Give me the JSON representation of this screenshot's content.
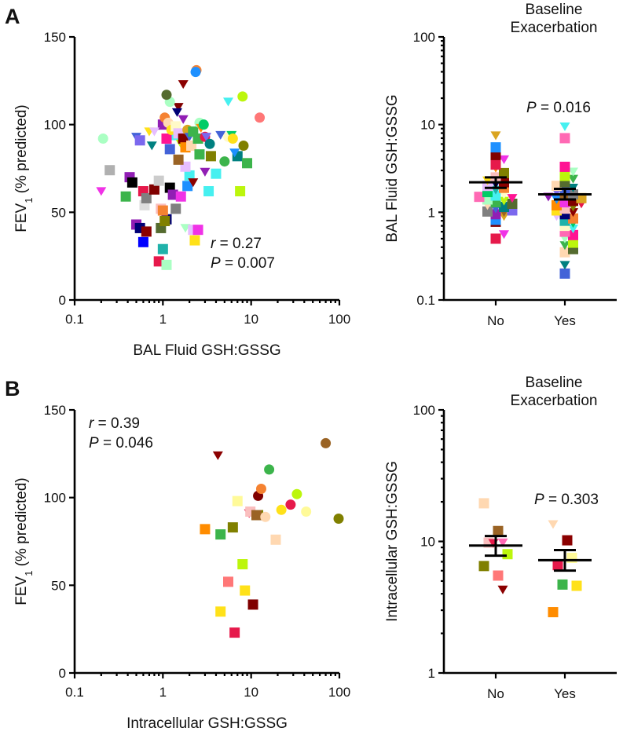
{
  "colors": [
    "#e6194b",
    "#3cb44b",
    "#ffe119",
    "#4363d8",
    "#f58231",
    "#911eb4",
    "#46f0f0",
    "#f032e6",
    "#bcf60c",
    "#fabebe",
    "#008080",
    "#e6beff",
    "#9a6324",
    "#fffac8",
    "#800000",
    "#aaffc3",
    "#808000",
    "#ffd8b1",
    "#000075",
    "#808080",
    "#00cc66",
    "#1e90ff",
    "#ff1493",
    "#ff8c00",
    "#556b2f",
    "#8b0000",
    "#7b68ee",
    "#20b2aa",
    "#daa520",
    "#ff69b4"
  ],
  "chart_data": [
    {
      "panel": "A",
      "type": "scatter",
      "title": "",
      "xlabel": "BAL Fluid GSH:GSSG",
      "ylabel_main": "FEV",
      "ylabel_sub": "1",
      "ylabel_tail": " (% predicted)",
      "xscale": "log",
      "xlim": [
        0.1,
        100
      ],
      "ylim": [
        0,
        150
      ],
      "xticks": [
        "0.1",
        "1",
        "10",
        "100"
      ],
      "yticks": [
        "0",
        "50",
        "100",
        "150"
      ],
      "stats": {
        "r_label": "r",
        "r_value": " = 0.27",
        "p_label": "P",
        "p_value": " = 0.007"
      },
      "points": [
        {
          "x": 0.21,
          "y": 92,
          "s": "c",
          "c": "#aaffc3"
        },
        {
          "x": 0.2,
          "y": 62,
          "s": "t",
          "c": "#f032e6"
        },
        {
          "x": 0.25,
          "y": 74,
          "s": "s",
          "c": "#b0b0b0"
        },
        {
          "x": 0.38,
          "y": 59,
          "s": "s",
          "c": "#3cb44b"
        },
        {
          "x": 0.42,
          "y": 70,
          "s": "s",
          "c": "#911eb4"
        },
        {
          "x": 0.45,
          "y": 67,
          "s": "s",
          "c": "#000000"
        },
        {
          "x": 0.5,
          "y": 93,
          "s": "t",
          "c": "#4363d8"
        },
        {
          "x": 0.55,
          "y": 91,
          "s": "s",
          "c": "#7b68ee"
        },
        {
          "x": 0.6,
          "y": 62,
          "s": "s",
          "c": "#e6194b"
        },
        {
          "x": 0.62,
          "y": 54,
          "s": "s",
          "c": "#dddddd"
        },
        {
          "x": 0.65,
          "y": 58,
          "s": "s",
          "c": "#808080"
        },
        {
          "x": 0.7,
          "y": 96,
          "s": "t",
          "c": "#ffe119"
        },
        {
          "x": 0.8,
          "y": 63,
          "s": "s",
          "c": "#800000"
        },
        {
          "x": 0.75,
          "y": 88,
          "s": "t",
          "c": "#008080"
        },
        {
          "x": 0.9,
          "y": 68,
          "s": "s",
          "c": "#cccccc"
        },
        {
          "x": 0.95,
          "y": 52,
          "s": "s",
          "c": "#fabebe"
        },
        {
          "x": 0.5,
          "y": 43,
          "s": "s",
          "c": "#911eb4"
        },
        {
          "x": 0.55,
          "y": 41,
          "s": "s",
          "c": "#000075"
        },
        {
          "x": 0.65,
          "y": 39,
          "s": "s",
          "c": "#8b0000"
        },
        {
          "x": 0.6,
          "y": 33,
          "s": "s",
          "c": "#0000ff"
        },
        {
          "x": 0.9,
          "y": 22,
          "s": "s",
          "c": "#e6194b"
        },
        {
          "x": 1.1,
          "y": 20,
          "s": "s",
          "c": "#aaffc3"
        },
        {
          "x": 1.0,
          "y": 29,
          "s": "s",
          "c": "#20b2aa"
        },
        {
          "x": 0.95,
          "y": 41,
          "s": "s",
          "c": "#556b2f"
        },
        {
          "x": 1.1,
          "y": 46,
          "s": "s",
          "c": "#000075"
        },
        {
          "x": 1.05,
          "y": 45,
          "s": "s",
          "c": "#808000"
        },
        {
          "x": 1.0,
          "y": 51,
          "s": "s",
          "c": "#f58231"
        },
        {
          "x": 1.4,
          "y": 52,
          "s": "s",
          "c": "#808080"
        },
        {
          "x": 1.2,
          "y": 64,
          "s": "s",
          "c": "#000000"
        },
        {
          "x": 1.3,
          "y": 60,
          "s": "s",
          "c": "#911eb4"
        },
        {
          "x": 1.6,
          "y": 59,
          "s": "s",
          "c": "#f032e6"
        },
        {
          "x": 1.9,
          "y": 65,
          "s": "s",
          "c": "#1e90ff"
        },
        {
          "x": 2.0,
          "y": 71,
          "s": "s",
          "c": "#46f0f0"
        },
        {
          "x": 2.2,
          "y": 67,
          "s": "t",
          "c": "#8b0000"
        },
        {
          "x": 1.8,
          "y": 76,
          "s": "s",
          "c": "#e6beff"
        },
        {
          "x": 1.5,
          "y": 80,
          "s": "s",
          "c": "#9a6324"
        },
        {
          "x": 1.2,
          "y": 86,
          "s": "s",
          "c": "#4363d8"
        },
        {
          "x": 1.3,
          "y": 94,
          "s": "s",
          "c": "#46f0f0"
        },
        {
          "x": 1.1,
          "y": 92,
          "s": "s",
          "c": "#ff1493"
        },
        {
          "x": 1.0,
          "y": 100,
          "s": "s",
          "c": "#911eb4"
        },
        {
          "x": 1.05,
          "y": 104,
          "s": "c",
          "c": "#f58231"
        },
        {
          "x": 1.15,
          "y": 101,
          "s": "c",
          "c": "#ffd8b1"
        },
        {
          "x": 1.25,
          "y": 97,
          "s": "c",
          "c": "#ffe119"
        },
        {
          "x": 1.4,
          "y": 99,
          "s": "s",
          "c": "#fffac8"
        },
        {
          "x": 1.5,
          "y": 95,
          "s": "s",
          "c": "#e6beff"
        },
        {
          "x": 1.6,
          "y": 89,
          "s": "t",
          "c": "#bcf60c"
        },
        {
          "x": 1.7,
          "y": 92,
          "s": "s",
          "c": "#800000"
        },
        {
          "x": 1.8,
          "y": 87,
          "s": "s",
          "c": "#ff8c00"
        },
        {
          "x": 1.9,
          "y": 97,
          "s": "c",
          "c": "#daa520"
        },
        {
          "x": 2.0,
          "y": 93,
          "s": "t",
          "c": "#4363d8"
        },
        {
          "x": 2.1,
          "y": 88,
          "s": "s",
          "c": "#ffd8b1"
        },
        {
          "x": 2.2,
          "y": 96,
          "s": "s",
          "c": "#3cb44b"
        },
        {
          "x": 2.5,
          "y": 92,
          "s": "s",
          "c": "#3cb44b"
        },
        {
          "x": 2.6,
          "y": 101,
          "s": "c",
          "c": "#aaffc3"
        },
        {
          "x": 2.7,
          "y": 98,
          "s": "t",
          "c": "#ff8c00"
        },
        {
          "x": 3.0,
          "y": 93,
          "s": "c",
          "c": "#e6194b"
        },
        {
          "x": 3.1,
          "y": 93,
          "s": "t",
          "c": "#7b68ee"
        },
        {
          "x": 2.9,
          "y": 100,
          "s": "c",
          "c": "#00cc66"
        },
        {
          "x": 1.5,
          "y": 110,
          "s": "t",
          "c": "#800000"
        },
        {
          "x": 1.45,
          "y": 107,
          "s": "t",
          "c": "#000075"
        },
        {
          "x": 1.7,
          "y": 103,
          "s": "t",
          "c": "#911eb4"
        },
        {
          "x": 1.2,
          "y": 113,
          "s": "c",
          "c": "#aaffc3"
        },
        {
          "x": 1.1,
          "y": 117,
          "s": "c",
          "c": "#556b2f"
        },
        {
          "x": 1.7,
          "y": 123,
          "s": "t",
          "c": "#8b0000"
        },
        {
          "x": 2.4,
          "y": 131,
          "s": "c",
          "c": "#f58231"
        },
        {
          "x": 2.35,
          "y": 130,
          "s": "c",
          "c": "#1e90ff"
        },
        {
          "x": 2.6,
          "y": 83,
          "s": "s",
          "c": "#3cb44b"
        },
        {
          "x": 3.5,
          "y": 82,
          "s": "s",
          "c": "#808000"
        },
        {
          "x": 3.4,
          "y": 89,
          "s": "c",
          "c": "#008080"
        },
        {
          "x": 3.0,
          "y": 73,
          "s": "t",
          "c": "#911eb4"
        },
        {
          "x": 4.0,
          "y": 72,
          "s": "s",
          "c": "#46f0f0"
        },
        {
          "x": 3.3,
          "y": 62,
          "s": "s",
          "c": "#46f0f0"
        },
        {
          "x": 5.0,
          "y": 79,
          "s": "c",
          "c": "#3cb44b"
        },
        {
          "x": 4.5,
          "y": 94,
          "s": "t",
          "c": "#4363d8"
        },
        {
          "x": 5.5,
          "y": 93,
          "s": "c",
          "c": "#fffac8"
        },
        {
          "x": 6.0,
          "y": 94,
          "s": "t",
          "c": "#00cc66"
        },
        {
          "x": 6.2,
          "y": 92,
          "s": "c",
          "c": "#ffe119"
        },
        {
          "x": 5.5,
          "y": 113,
          "s": "t",
          "c": "#46f0f0"
        },
        {
          "x": 8.0,
          "y": 116,
          "s": "c",
          "c": "#bcf60c"
        },
        {
          "x": 8.2,
          "y": 88,
          "s": "c",
          "c": "#808000"
        },
        {
          "x": 7.0,
          "y": 82,
          "s": "s",
          "c": "#008080"
        },
        {
          "x": 9.0,
          "y": 78,
          "s": "s",
          "c": "#3cb44b"
        },
        {
          "x": 7.5,
          "y": 62,
          "s": "s",
          "c": "#bcf60c"
        },
        {
          "x": 12.5,
          "y": 104,
          "s": "c",
          "c": "#ff7777"
        },
        {
          "x": 6.5,
          "y": 84,
          "s": "t",
          "c": "#1e90ff"
        },
        {
          "x": 1.8,
          "y": 41,
          "s": "t",
          "c": "#aaffc3"
        },
        {
          "x": 2.2,
          "y": 40,
          "s": "s",
          "c": "#e6beff"
        },
        {
          "x": 2.5,
          "y": 40,
          "s": "s",
          "c": "#f032e6"
        },
        {
          "x": 2.3,
          "y": 34,
          "s": "s",
          "c": "#ffe119"
        },
        {
          "x": 0.8,
          "y": 96,
          "s": "t",
          "c": "#e6beff"
        }
      ]
    },
    {
      "panel": "A",
      "type": "scatter",
      "title": "Baseline Exacerbation",
      "title_line1": "Baseline",
      "title_line2": "Exacerbation",
      "xlabel": "",
      "ylabel": "BAL Fluid GSH:GSSG",
      "yscale": "log",
      "ylim": [
        0.1,
        100
      ],
      "categories": [
        "No",
        "Yes"
      ],
      "yticks": [
        "0.1",
        "1",
        "10",
        "100"
      ],
      "stats": {
        "p_label": "P",
        "p_value": " = 0.016"
      },
      "summary": [
        {
          "category": "No",
          "mean": 2.2,
          "sem_low": 1.9,
          "sem_high": 2.5
        },
        {
          "category": "Yes",
          "mean": 1.6,
          "sem_low": 1.4,
          "sem_high": 1.85
        }
      ],
      "groups": [
        {
          "category": "No",
          "values": [
            0.5,
            0.56,
            0.78,
            0.82,
            0.9,
            0.95,
            1.0,
            1.02,
            1.05,
            1.1,
            1.15,
            1.2,
            1.25,
            1.3,
            1.35,
            1.4,
            1.45,
            1.5,
            1.55,
            1.6,
            1.7,
            1.8,
            1.9,
            2.0,
            2.1,
            2.2,
            2.3,
            2.5,
            2.8,
            3.2,
            3.5,
            4.0,
            4.5,
            5.5,
            7.5
          ]
        },
        {
          "category": "Yes",
          "values": [
            0.2,
            0.25,
            0.35,
            0.38,
            0.42,
            0.45,
            0.5,
            0.55,
            0.6,
            0.65,
            0.7,
            0.75,
            0.8,
            0.85,
            0.9,
            0.95,
            1.0,
            1.05,
            1.1,
            1.15,
            1.2,
            1.25,
            1.3,
            1.35,
            1.4,
            1.45,
            1.5,
            1.55,
            1.6,
            1.7,
            1.8,
            1.9,
            2.0,
            2.2,
            2.4,
            2.6,
            2.9,
            3.3,
            7.0,
            9.5
          ]
        }
      ]
    },
    {
      "panel": "B",
      "type": "scatter",
      "title": "",
      "xlabel": "Intracellular GSH:GSSG",
      "ylabel_main": "FEV",
      "ylabel_sub": "1",
      "ylabel_tail": " (% predicted)",
      "xscale": "log",
      "xlim": [
        0.1,
        100
      ],
      "ylim": [
        0,
        150
      ],
      "xticks": [
        "0.1",
        "1",
        "10",
        "100"
      ],
      "yticks": [
        "0",
        "50",
        "100",
        "150"
      ],
      "stats": {
        "r_label": "r",
        "r_value": " = 0.39",
        "p_label": "P",
        "p_value": " = 0.046"
      },
      "points": [
        {
          "x": 4.2,
          "y": 124,
          "s": "t",
          "c": "#8b0000"
        },
        {
          "x": 3.0,
          "y": 82,
          "s": "s",
          "c": "#ff8c00"
        },
        {
          "x": 4.5,
          "y": 79,
          "s": "s",
          "c": "#3cb44b"
        },
        {
          "x": 6.2,
          "y": 83,
          "s": "s",
          "c": "#808000"
        },
        {
          "x": 7.0,
          "y": 98,
          "s": "s",
          "c": "#fffa99"
        },
        {
          "x": 8.0,
          "y": 62,
          "s": "s",
          "c": "#bcf60c"
        },
        {
          "x": 9.5,
          "y": 91,
          "s": "t",
          "c": "#e6194b"
        },
        {
          "x": 9.8,
          "y": 92,
          "s": "s",
          "c": "#fabebe"
        },
        {
          "x": 12.0,
          "y": 90,
          "s": "s",
          "c": "#808000"
        },
        {
          "x": 11.5,
          "y": 90,
          "s": "s",
          "c": "#9a6324"
        },
        {
          "x": 12.0,
          "y": 101,
          "s": "c",
          "c": "#800000"
        },
        {
          "x": 13.0,
          "y": 105,
          "s": "c",
          "c": "#f58231"
        },
        {
          "x": 14.5,
          "y": 89,
          "s": "c",
          "c": "#ffd8b1"
        },
        {
          "x": 16.0,
          "y": 116,
          "s": "c",
          "c": "#3cb44b"
        },
        {
          "x": 19.0,
          "y": 76,
          "s": "s",
          "c": "#ffd8b1"
        },
        {
          "x": 22.0,
          "y": 93,
          "s": "c",
          "c": "#ffe119"
        },
        {
          "x": 28.0,
          "y": 96,
          "s": "c",
          "c": "#e6194b"
        },
        {
          "x": 33.0,
          "y": 102,
          "s": "c",
          "c": "#bcf60c"
        },
        {
          "x": 42.0,
          "y": 92,
          "s": "c",
          "c": "#fffa99"
        },
        {
          "x": 70.0,
          "y": 131,
          "s": "c",
          "c": "#9a6324"
        },
        {
          "x": 98.0,
          "y": 88,
          "s": "c",
          "c": "#808000"
        },
        {
          "x": 5.5,
          "y": 52,
          "s": "s",
          "c": "#ff7777"
        },
        {
          "x": 8.5,
          "y": 47,
          "s": "s",
          "c": "#ffe119"
        },
        {
          "x": 4.5,
          "y": 35,
          "s": "s",
          "c": "#ffe119"
        },
        {
          "x": 10.5,
          "y": 39,
          "s": "s",
          "c": "#800000"
        },
        {
          "x": 6.5,
          "y": 23,
          "s": "s",
          "c": "#e6194b"
        }
      ]
    },
    {
      "panel": "B",
      "type": "scatter",
      "title": "Baseline Exacerbation",
      "title_line1": "Baseline",
      "title_line2": "Exacerbation",
      "xlabel": "",
      "ylabel": "Intracellular GSH:GSSG",
      "yscale": "log",
      "ylim": [
        1,
        100
      ],
      "categories": [
        "No",
        "Yes"
      ],
      "yticks": [
        "1",
        "10",
        "100"
      ],
      "stats": {
        "p_label": "P",
        "p_value": " = 0.303"
      },
      "summary": [
        {
          "category": "No",
          "mean": 9.3,
          "sem_low": 7.8,
          "sem_high": 11.0
        },
        {
          "category": "Yes",
          "mean": 7.2,
          "sem_low": 6.0,
          "sem_high": 8.6
        }
      ],
      "groups": [
        {
          "category": "No",
          "points": [
            {
              "v": 19.5,
              "s": "s",
              "c": "#ffd8b1"
            },
            {
              "v": 12.0,
              "s": "s",
              "c": "#9a6324"
            },
            {
              "v": 9.8,
              "s": "t",
              "c": "#ff69b4"
            },
            {
              "v": 9.8,
              "s": "s",
              "c": "#fabebe"
            },
            {
              "v": 9.7,
              "s": "t",
              "c": "#e6194b"
            },
            {
              "v": 8.0,
              "s": "s",
              "c": "#bcf60c"
            },
            {
              "v": 6.5,
              "s": "s",
              "c": "#808000"
            },
            {
              "v": 5.5,
              "s": "s",
              "c": "#ff7777"
            },
            {
              "v": 4.3,
              "s": "t",
              "c": "#8b0000"
            }
          ]
        },
        {
          "category": "Yes",
          "points": [
            {
              "v": 13.5,
              "s": "t",
              "c": "#ffd8b1"
            },
            {
              "v": 10.2,
              "s": "s",
              "c": "#8b0000"
            },
            {
              "v": 7.5,
              "s": "s",
              "c": "#fffa99"
            },
            {
              "v": 6.6,
              "s": "s",
              "c": "#e6194b"
            },
            {
              "v": 4.7,
              "s": "s",
              "c": "#3cb44b"
            },
            {
              "v": 4.6,
              "s": "s",
              "c": "#ffe119"
            },
            {
              "v": 2.9,
              "s": "s",
              "c": "#ff8c00"
            }
          ]
        }
      ]
    }
  ],
  "panels": {
    "a_letter": "A",
    "b_letter": "B"
  }
}
